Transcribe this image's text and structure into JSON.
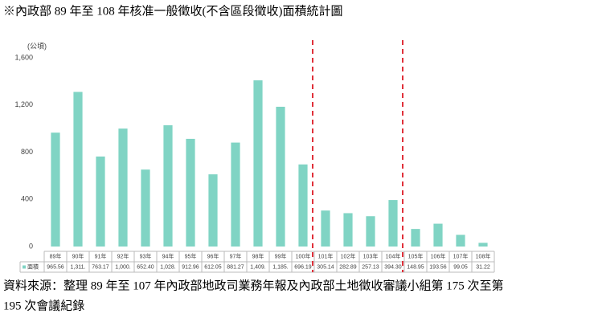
{
  "chart_data": {
    "type": "bar",
    "title": "※內政部 89 年至 108 年核准一般徵收(不含區段徵收)面積統計圖",
    "y_label": "(公頃)",
    "categories": [
      "89年",
      "90年",
      "91年",
      "92年",
      "93年",
      "94年",
      "95年",
      "96年",
      "97年",
      "98年",
      "99年",
      "100年",
      "101年",
      "102年",
      "103年",
      "104年",
      "105年",
      "106年",
      "107年",
      "108年"
    ],
    "series": [
      {
        "name": "面積",
        "color": "#80d4c4",
        "values": [
          965.56,
          1311,
          763.17,
          1000,
          652.4,
          1028,
          912.96,
          612.05,
          881.27,
          1409,
          1185,
          696.19,
          305.14,
          282.89,
          257.13,
          394.3,
          148.95,
          193.56,
          99.05,
          31.22
        ],
        "value_labels": [
          "965.56",
          "1,311.",
          "763.17",
          "1,000.",
          "652.40",
          "1,028.",
          "912.96",
          "612.05",
          "881.27",
          "1,409.",
          "1,185.",
          "696.19",
          "305.14",
          "282.89",
          "257.13",
          "394.30",
          "148.95",
          "193.56",
          "99.05",
          "31.22"
        ]
      }
    ],
    "ylim": [
      0,
      1600
    ],
    "yticks": [
      0,
      400,
      800,
      {
        "value": 1200,
        "label": "1,200"
      },
      {
        "value": 1600,
        "label": "1,600"
      }
    ],
    "source": [
      "資料來源：整理 89 年至 107 年內政部地政司業務年報及內政部土地徵收審議小組第 175 次至第",
      "195 次會議紀錄"
    ]
  }
}
